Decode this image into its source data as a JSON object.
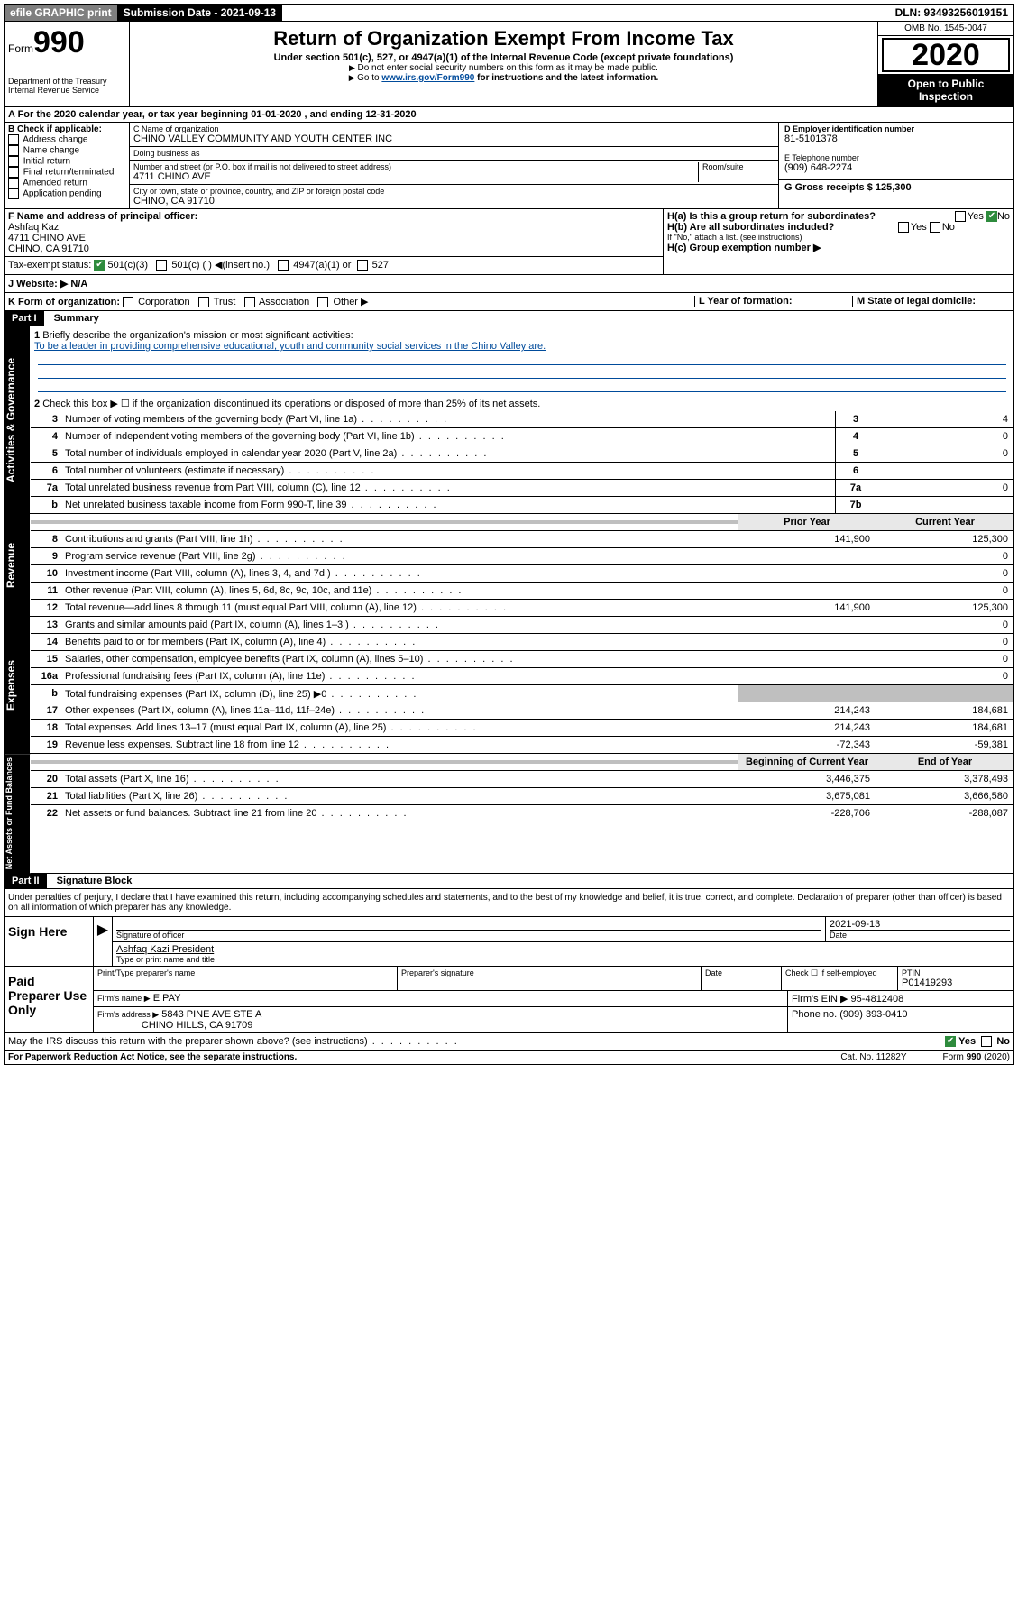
{
  "topbar": {
    "efile": "efile GRAPHIC print",
    "submission_label": "Submission Date - 2021-09-13",
    "dln": "DLN: 93493256019151"
  },
  "header": {
    "form_label": "Form",
    "form_number": "990",
    "dept1": "Department of the Treasury",
    "dept2": "Internal Revenue Service",
    "title": "Return of Organization Exempt From Income Tax",
    "subtitle": "Under section 501(c), 527, or 4947(a)(1) of the Internal Revenue Code (except private foundations)",
    "note1": "Do not enter social security numbers on this form as it may be made public.",
    "note2_pre": "Go to ",
    "note2_link": "www.irs.gov/Form990",
    "note2_post": " for instructions and the latest information.",
    "omb": "OMB No. 1545-0047",
    "year": "2020",
    "open": "Open to Public Inspection"
  },
  "row_a": "A   For the 2020 calendar year, or tax year beginning 01-01-2020    , and ending 12-31-2020",
  "col_b": {
    "title": "B Check if applicable:",
    "opts": [
      "Address change",
      "Name change",
      "Initial return",
      "Final return/terminated",
      "Amended return",
      "Application pending"
    ]
  },
  "col_c": {
    "name_label": "C Name of organization",
    "name": "CHINO VALLEY COMMUNITY AND YOUTH CENTER INC",
    "dba": "Doing business as",
    "addr_label": "Number and street (or P.O. box if mail is not delivered to street address)",
    "room": "Room/suite",
    "addr": "4711 CHINO AVE",
    "city_label": "City or town, state or province, country, and ZIP or foreign postal code",
    "city": "CHINO, CA  91710"
  },
  "col_de": {
    "d_label": "D Employer identification number",
    "d_val": "81-5101378",
    "e_label": "E Telephone number",
    "e_val": "(909) 648-2274",
    "g_label": "G Gross receipts $ 125,300"
  },
  "col_f": {
    "label": "F  Name and address of principal officer:",
    "name": "Ashfaq Kazi",
    "addr1": "4711 CHINO AVE",
    "addr2": "CHINO, CA  91710",
    "tax_label": "Tax-exempt status:",
    "tax_501c3": "501(c)(3)",
    "tax_501c": "501(c) (  ) ◀(insert no.)",
    "tax_4947": "4947(a)(1) or",
    "tax_527": "527"
  },
  "col_h": {
    "ha": "H(a)  Is this a group return for subordinates?",
    "hb": "H(b)  Are all subordinates included?",
    "hb_note": "If \"No,\" attach a list. (see instructions)",
    "hc": "H(c)  Group exemption number ▶",
    "yes": "Yes",
    "no": "No"
  },
  "row_j": "J  Website: ▶  N/A",
  "row_k": {
    "k": "K Form of organization:",
    "opts": [
      "Corporation",
      "Trust",
      "Association",
      "Other ▶"
    ],
    "l": "L Year of formation:",
    "m": "M State of legal domicile:"
  },
  "part1": {
    "hdr": "Part I",
    "title": "Summary",
    "l1": "Briefly describe the organization's mission or most significant activities:",
    "l1_text": "To be a leader in providing comprehensive educational, youth and community social services in the Chino Valley are.",
    "l2": "Check this box ▶ ☐  if the organization discontinued its operations or disposed of more than 25% of its net assets.",
    "lines": [
      {
        "n": "3",
        "t": "Number of voting members of the governing body (Part VI, line 1a)",
        "box": "3",
        "v": "4"
      },
      {
        "n": "4",
        "t": "Number of independent voting members of the governing body (Part VI, line 1b)",
        "box": "4",
        "v": "0"
      },
      {
        "n": "5",
        "t": "Total number of individuals employed in calendar year 2020 (Part V, line 2a)",
        "box": "5",
        "v": "0"
      },
      {
        "n": "6",
        "t": "Total number of volunteers (estimate if necessary)",
        "box": "6",
        "v": ""
      },
      {
        "n": "7a",
        "t": "Total unrelated business revenue from Part VIII, column (C), line 12",
        "box": "7a",
        "v": "0"
      },
      {
        "n": "b",
        "t": "Net unrelated business taxable income from Form 990-T, line 39",
        "box": "7b",
        "v": ""
      }
    ],
    "col_prior": "Prior Year",
    "col_current": "Current Year",
    "revenue": [
      {
        "n": "8",
        "t": "Contributions and grants (Part VIII, line 1h)",
        "p": "141,900",
        "c": "125,300"
      },
      {
        "n": "9",
        "t": "Program service revenue (Part VIII, line 2g)",
        "p": "",
        "c": "0"
      },
      {
        "n": "10",
        "t": "Investment income (Part VIII, column (A), lines 3, 4, and 7d )",
        "p": "",
        "c": "0"
      },
      {
        "n": "11",
        "t": "Other revenue (Part VIII, column (A), lines 5, 6d, 8c, 9c, 10c, and 11e)",
        "p": "",
        "c": "0"
      },
      {
        "n": "12",
        "t": "Total revenue—add lines 8 through 11 (must equal Part VIII, column (A), line 12)",
        "p": "141,900",
        "c": "125,300"
      }
    ],
    "expenses": [
      {
        "n": "13",
        "t": "Grants and similar amounts paid (Part IX, column (A), lines 1–3 )",
        "p": "",
        "c": "0"
      },
      {
        "n": "14",
        "t": "Benefits paid to or for members (Part IX, column (A), line 4)",
        "p": "",
        "c": "0"
      },
      {
        "n": "15",
        "t": "Salaries, other compensation, employee benefits (Part IX, column (A), lines 5–10)",
        "p": "",
        "c": "0"
      },
      {
        "n": "16a",
        "t": "Professional fundraising fees (Part IX, column (A), line 11e)",
        "p": "",
        "c": "0"
      },
      {
        "n": "b",
        "t": "Total fundraising expenses (Part IX, column (D), line 25) ▶0",
        "p": "shade",
        "c": "shade"
      },
      {
        "n": "17",
        "t": "Other expenses (Part IX, column (A), lines 11a–11d, 11f–24e)",
        "p": "214,243",
        "c": "184,681"
      },
      {
        "n": "18",
        "t": "Total expenses. Add lines 13–17 (must equal Part IX, column (A), line 25)",
        "p": "214,243",
        "c": "184,681"
      },
      {
        "n": "19",
        "t": "Revenue less expenses. Subtract line 18 from line 12",
        "p": "-72,343",
        "c": "-59,381"
      }
    ],
    "col_begin": "Beginning of Current Year",
    "col_end": "End of Year",
    "netassets": [
      {
        "n": "20",
        "t": "Total assets (Part X, line 16)",
        "p": "3,446,375",
        "c": "3,378,493"
      },
      {
        "n": "21",
        "t": "Total liabilities (Part X, line 26)",
        "p": "3,675,081",
        "c": "3,666,580"
      },
      {
        "n": "22",
        "t": "Net assets or fund balances. Subtract line 21 from line 20",
        "p": "-228,706",
        "c": "-288,087"
      }
    ]
  },
  "side_labels": {
    "gov": "Activities & Governance",
    "rev": "Revenue",
    "exp": "Expenses",
    "net": "Net Assets or Fund Balances"
  },
  "part2": {
    "hdr": "Part II",
    "title": "Signature Block",
    "penalty": "Under penalties of perjury, I declare that I have examined this return, including accompanying schedules and statements, and to the best of my knowledge and belief, it is true, correct, and complete. Declaration of preparer (other than officer) is based on all information of which preparer has any knowledge.",
    "sign_here": "Sign Here",
    "sig_officer": "Signature of officer",
    "sig_date": "2021-09-13",
    "date_label": "Date",
    "officer_name": "Ashfaq Kazi  President",
    "type_name": "Type or print name and title",
    "paid": "Paid Preparer Use Only",
    "print_name": "Print/Type preparer's name",
    "prep_sig": "Preparer's signature",
    "check_self": "Check ☐ if self-employed",
    "ptin_label": "PTIN",
    "ptin": "P01419293",
    "firm_name_label": "Firm's name    ▶",
    "firm_name": "E PAY",
    "firm_ein": "Firm's EIN ▶ 95-4812408",
    "firm_addr_label": "Firm's address ▶",
    "firm_addr": "5843 PINE AVE STE A",
    "firm_city": "CHINO HILLS, CA  91709",
    "phone": "Phone no. (909) 393-0410",
    "discuss": "May the IRS discuss this return with the preparer shown above? (see instructions)"
  },
  "footer": {
    "pra": "For Paperwork Reduction Act Notice, see the separate instructions.",
    "cat": "Cat. No. 11282Y",
    "form": "Form 990 (2020)"
  }
}
